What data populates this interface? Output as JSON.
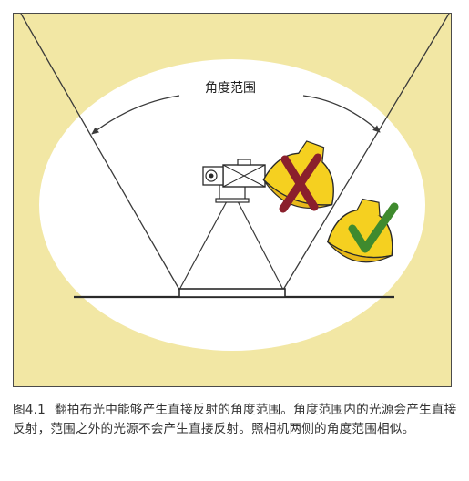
{
  "figure": {
    "angle_label": "角度范围",
    "colors": {
      "background": "#f2e7a4",
      "ellipse": "#ffffff",
      "line": "#3a3a3a",
      "lamp": "#f5d020",
      "lamp_inner": "#e8b81a",
      "cross": "#8a1f2c",
      "check": "#3f8a2e"
    },
    "icons": [
      "camera-icon",
      "light-hood-icon",
      "cross-mark-icon",
      "check-mark-icon"
    ]
  },
  "caption": {
    "figure_number": "图4.1",
    "text": "翻拍布光中能够产生直接反射的角度范围。角度范围内的光源会产生直接反射，范围之外的光源不会产生直接反射。照相机两侧的角度范围相似。"
  }
}
